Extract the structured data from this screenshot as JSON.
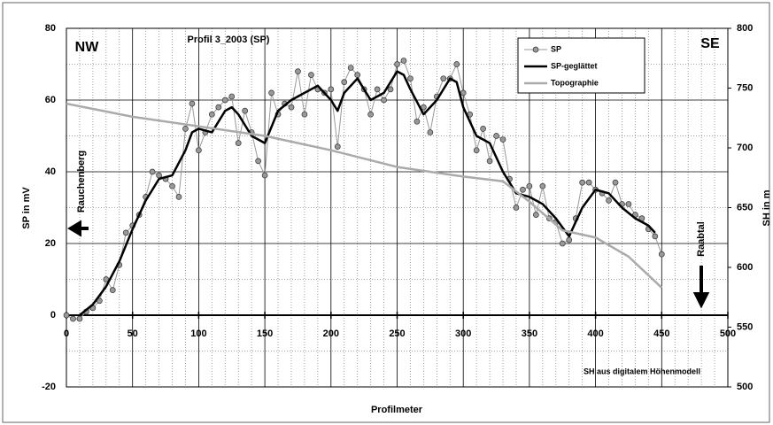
{
  "chart_data": {
    "type": "line",
    "title": "Profil 3_2003 (SP)",
    "x_label": "Profilmeter",
    "y_label": "SP in mV",
    "y2_label": "SH in m",
    "annotations": [
      "NW",
      "SE",
      "Rauchenberg",
      "Raabtal",
      "SH aus digitalem Höhenmodell"
    ],
    "xlim": [
      0,
      500
    ],
    "xticks": [
      0,
      50,
      100,
      150,
      200,
      250,
      300,
      350,
      400,
      450,
      500
    ],
    "ylim": [
      -20,
      80
    ],
    "yticks": [
      -20,
      0,
      20,
      40,
      60,
      80
    ],
    "y2lim": [
      500,
      800
    ],
    "y2ticks": [
      500,
      550,
      600,
      650,
      700,
      750,
      800
    ],
    "grid": true,
    "legend": "upper right",
    "series": [
      {
        "name": "SP",
        "color": "#999999",
        "markers": true,
        "x": [
          0,
          5,
          10,
          15,
          20,
          25,
          30,
          35,
          40,
          45,
          50,
          55,
          60,
          65,
          70,
          75,
          80,
          85,
          90,
          95,
          100,
          105,
          110,
          115,
          120,
          125,
          130,
          135,
          140,
          145,
          150,
          155,
          160,
          165,
          170,
          175,
          180,
          185,
          190,
          195,
          200,
          205,
          210,
          215,
          220,
          225,
          230,
          235,
          240,
          245,
          250,
          255,
          260,
          265,
          270,
          275,
          280,
          285,
          290,
          295,
          300,
          305,
          310,
          315,
          320,
          325,
          330,
          335,
          340,
          345,
          350,
          355,
          360,
          365,
          370,
          375,
          380,
          385,
          390,
          395,
          400,
          405,
          410,
          415,
          420,
          425,
          430,
          435,
          440,
          445,
          450
        ],
        "values": [
          0,
          -1,
          -1,
          1,
          2,
          4,
          10,
          7,
          14,
          23,
          25,
          28,
          33,
          40,
          39,
          38,
          36,
          33,
          52,
          59,
          46,
          51,
          56,
          58,
          60,
          61,
          48,
          57,
          51,
          43,
          39,
          62,
          56,
          59,
          58,
          68,
          56,
          67,
          63,
          62,
          63,
          47,
          65,
          69,
          67,
          63,
          56,
          63,
          60,
          63,
          70,
          71,
          66,
          54,
          58,
          51,
          61,
          66,
          66,
          70,
          62,
          56,
          46,
          52,
          43,
          50,
          49,
          38,
          30,
          35,
          36,
          28,
          36,
          27,
          26,
          20,
          21,
          27,
          37,
          37,
          35,
          34,
          32,
          37,
          31,
          31,
          28,
          27,
          24,
          22,
          17
        ]
      },
      {
        "name": "SP-geglättet",
        "color": "#000000",
        "x": [
          10,
          20,
          30,
          40,
          50,
          60,
          70,
          80,
          90,
          95,
          100,
          110,
          120,
          125,
          130,
          140,
          150,
          160,
          170,
          180,
          190,
          200,
          205,
          210,
          220,
          230,
          240,
          250,
          255,
          260,
          270,
          280,
          290,
          295,
          300,
          310,
          320,
          330,
          340,
          350,
          360,
          370,
          380,
          390,
          400,
          410,
          420,
          430,
          440,
          445
        ],
        "values": [
          0,
          3,
          8,
          15,
          24,
          32,
          38,
          39,
          46,
          51,
          52,
          51,
          57,
          58,
          56,
          50,
          48,
          57,
          60,
          62,
          64,
          60,
          57,
          62,
          66,
          60,
          62,
          68,
          67,
          63,
          56,
          60,
          66,
          65,
          58,
          50,
          48,
          40,
          34,
          33,
          31,
          27,
          22,
          30,
          35,
          34,
          30,
          27,
          25,
          23
        ]
      },
      {
        "name": "Topographie",
        "color": "#aaaaaa",
        "axis": "y2",
        "x": [
          0,
          50,
          100,
          150,
          200,
          250,
          300,
          330,
          350,
          375,
          400,
          425,
          450
        ],
        "values": [
          737,
          726,
          718,
          710,
          698,
          684,
          676,
          672,
          655,
          631,
          625,
          609,
          583
        ]
      }
    ]
  }
}
